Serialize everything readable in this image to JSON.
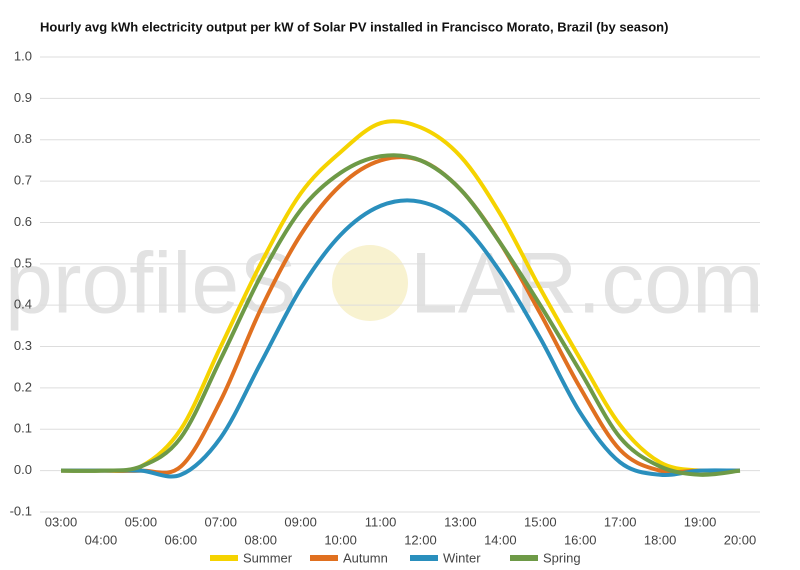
{
  "chart_data": {
    "type": "line",
    "title": "Hourly avg kWh electricity output per kW of Solar PV installed in Francisco Morato, Brazil (by season)",
    "watermark": [
      "profileS",
      "LAR.com"
    ],
    "categories": [
      "03:00",
      "04:00",
      "05:00",
      "06:00",
      "07:00",
      "08:00",
      "09:00",
      "10:00",
      "11:00",
      "12:00",
      "13:00",
      "14:00",
      "15:00",
      "16:00",
      "17:00",
      "18:00",
      "19:00",
      "20:00"
    ],
    "series": [
      {
        "name": "Summer",
        "color": "#f5d300",
        "values": [
          0,
          0,
          0.01,
          0.1,
          0.3,
          0.5,
          0.67,
          0.77,
          0.84,
          0.83,
          0.76,
          0.62,
          0.44,
          0.27,
          0.11,
          0.02,
          0,
          0
        ]
      },
      {
        "name": "Autumn",
        "color": "#e07020",
        "values": [
          0,
          0,
          0,
          0.01,
          0.17,
          0.39,
          0.57,
          0.69,
          0.75,
          0.75,
          0.68,
          0.55,
          0.38,
          0.2,
          0.05,
          0,
          0,
          0
        ]
      },
      {
        "name": "Winter",
        "color": "#2a8fbd",
        "values": [
          0,
          0,
          0,
          -0.01,
          0.08,
          0.26,
          0.44,
          0.57,
          0.64,
          0.65,
          0.6,
          0.48,
          0.32,
          0.14,
          0.02,
          -0.01,
          0,
          0
        ]
      },
      {
        "name": "Spring",
        "color": "#6e9a47",
        "values": [
          0,
          0,
          0.01,
          0.08,
          0.27,
          0.47,
          0.63,
          0.72,
          0.76,
          0.75,
          0.68,
          0.55,
          0.4,
          0.24,
          0.08,
          0.01,
          -0.01,
          0
        ]
      }
    ],
    "ylim": [
      -0.1,
      1.0
    ],
    "yticks": [
      -0.1,
      {
        "value": 0,
        "label": "0.0"
      },
      0.1,
      0.2,
      0.3,
      0.4,
      0.5,
      0.6,
      0.7,
      0.8,
      0.9,
      {
        "value": 1,
        "label": "1.0"
      }
    ],
    "grid": true
  }
}
